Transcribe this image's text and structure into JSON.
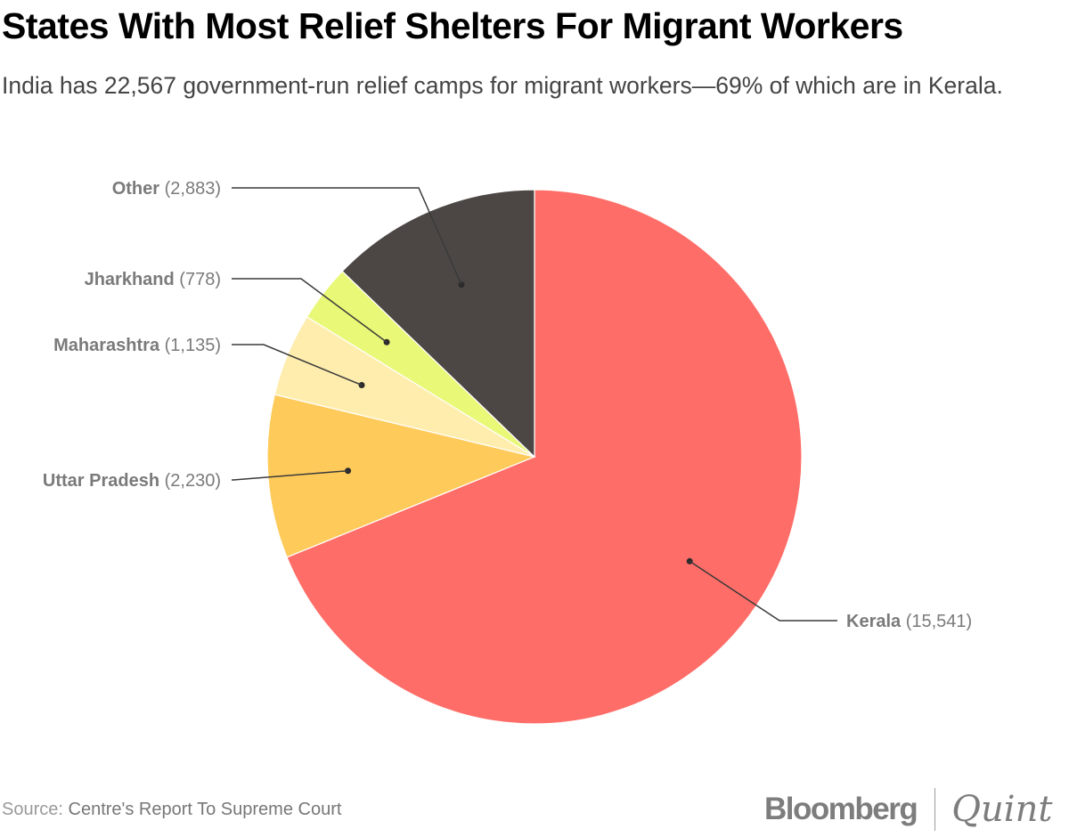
{
  "header": {
    "title": "States With Most Relief Shelters For Migrant Workers",
    "subtitle": "India has 22,567 government-run relief camps for migrant workers—69% of which are in Kerala."
  },
  "chart_data": {
    "type": "pie",
    "title": "States With Most Relief Shelters For Migrant Workers",
    "subtitle": "India has 22,567 government-run relief camps for migrant workers—69% of which are in Kerala.",
    "start": "top",
    "direction": "clockwise",
    "slices": [
      {
        "name": "Kerala",
        "value": 15541,
        "value_label": "(15,541)",
        "color": "#ff6d68",
        "label_side": "right"
      },
      {
        "name": "Uttar Pradesh",
        "value": 2230,
        "value_label": "(2,230)",
        "color": "#fecb5b",
        "label_side": "left"
      },
      {
        "name": "Maharashtra",
        "value": 1135,
        "value_label": "(1,135)",
        "color": "#feedad",
        "label_side": "left"
      },
      {
        "name": "Jharkhand",
        "value": 778,
        "value_label": "(778)",
        "color": "#e9f876",
        "label_side": "left"
      },
      {
        "name": "Other",
        "value": 2883,
        "value_label": "(2,883)",
        "color": "#4c4744",
        "label_side": "left"
      }
    ],
    "total": 22567
  },
  "footer": {
    "source_label": "Source:",
    "source_text": "Centre's Report To Supreme Court",
    "logo_left": "Bloomberg",
    "logo_right": "Quint"
  }
}
